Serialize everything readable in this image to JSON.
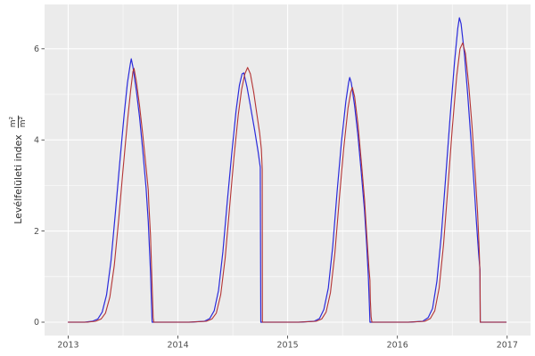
{
  "figure": {
    "background": "#FFFFFF"
  },
  "chart_data": {
    "type": "line",
    "title": "",
    "xlabel": "",
    "ylabel_text": "Levélfelületi index",
    "ylabel_unit_numerator": "m²",
    "ylabel_unit_denominator": "m²",
    "x_ticks": [
      "2013",
      "2014",
      "2015",
      "2016",
      "2017"
    ],
    "x_tick_values": [
      2013,
      2014,
      2015,
      2016,
      2017
    ],
    "x_minor_ticks": [
      2013.5,
      2014.5,
      2015.5,
      2016.5
    ],
    "y_ticks": [
      "0",
      "2",
      "4",
      "6"
    ],
    "y_tick_values": [
      0,
      2,
      4,
      6
    ],
    "y_minor_ticks": [
      1,
      3,
      5
    ],
    "xlim": [
      2012.785,
      2017.213
    ],
    "ylim": [
      -0.293,
      6.973
    ],
    "grid": "major+minor",
    "legend": "none",
    "panel_color": "#EBEBEB",
    "grid_major_color": "#FFFFFF",
    "grid_minor_color": "#FFFFFF",
    "tick_label_color": "#4D4D4D",
    "tick_mark_color": "#333333",
    "series": [
      {
        "name": "blue-series",
        "color": "#2B2BDB",
        "width": 1.2,
        "points": [
          [
            2013.0,
            0
          ],
          [
            2013.15,
            0
          ],
          [
            2013.22,
            0.02
          ],
          [
            2013.27,
            0.07
          ],
          [
            2013.31,
            0.22
          ],
          [
            2013.35,
            0.6
          ],
          [
            2013.39,
            1.35
          ],
          [
            2013.43,
            2.4
          ],
          [
            2013.47,
            3.5
          ],
          [
            2013.51,
            4.55
          ],
          [
            2013.54,
            5.25
          ],
          [
            2013.565,
            5.65
          ],
          [
            2013.575,
            5.78
          ],
          [
            2013.59,
            5.6
          ],
          [
            2013.62,
            5.1
          ],
          [
            2013.65,
            4.5
          ],
          [
            2013.68,
            3.75
          ],
          [
            2013.71,
            2.95
          ],
          [
            2013.73,
            2.2
          ],
          [
            2013.75,
            1.1
          ],
          [
            2013.76,
            0.35
          ],
          [
            2013.765,
            0
          ],
          [
            2013.9,
            0
          ],
          [
            2014.1,
            0
          ],
          [
            2014.24,
            0.02
          ],
          [
            2014.29,
            0.08
          ],
          [
            2014.33,
            0.25
          ],
          [
            2014.37,
            0.7
          ],
          [
            2014.41,
            1.55
          ],
          [
            2014.45,
            2.65
          ],
          [
            2014.49,
            3.7
          ],
          [
            2014.53,
            4.65
          ],
          [
            2014.56,
            5.2
          ],
          [
            2014.585,
            5.45
          ],
          [
            2014.6,
            5.47
          ],
          [
            2014.63,
            5.15
          ],
          [
            2014.66,
            4.75
          ],
          [
            2014.7,
            4.2
          ],
          [
            2014.73,
            3.75
          ],
          [
            2014.75,
            3.4
          ],
          [
            2014.755,
            0
          ],
          [
            2014.9,
            0
          ],
          [
            2015.1,
            0
          ],
          [
            2015.24,
            0.02
          ],
          [
            2015.29,
            0.08
          ],
          [
            2015.33,
            0.28
          ],
          [
            2015.37,
            0.75
          ],
          [
            2015.41,
            1.65
          ],
          [
            2015.45,
            2.85
          ],
          [
            2015.49,
            3.95
          ],
          [
            2015.53,
            4.85
          ],
          [
            2015.555,
            5.25
          ],
          [
            2015.565,
            5.37
          ],
          [
            2015.58,
            5.25
          ],
          [
            2015.61,
            4.75
          ],
          [
            2015.64,
            4.1
          ],
          [
            2015.67,
            3.3
          ],
          [
            2015.7,
            2.45
          ],
          [
            2015.72,
            1.7
          ],
          [
            2015.735,
            1.0
          ],
          [
            2015.745,
            0.35
          ],
          [
            2015.75,
            0
          ],
          [
            2015.9,
            0
          ],
          [
            2016.1,
            0
          ],
          [
            2016.23,
            0.02
          ],
          [
            2016.28,
            0.1
          ],
          [
            2016.32,
            0.3
          ],
          [
            2016.36,
            0.9
          ],
          [
            2016.4,
            1.9
          ],
          [
            2016.44,
            3.2
          ],
          [
            2016.48,
            4.5
          ],
          [
            2016.52,
            5.7
          ],
          [
            2016.55,
            6.45
          ],
          [
            2016.565,
            6.68
          ],
          [
            2016.58,
            6.55
          ],
          [
            2016.61,
            5.9
          ],
          [
            2016.64,
            5.0
          ],
          [
            2016.67,
            4.0
          ],
          [
            2016.7,
            2.95
          ],
          [
            2016.72,
            2.2
          ],
          [
            2016.74,
            1.5
          ],
          [
            2016.752,
            1.15
          ],
          [
            2016.755,
            0
          ],
          [
            2016.85,
            0
          ],
          [
            2016.99,
            0
          ]
        ]
      },
      {
        "name": "red-series",
        "color": "#B43434",
        "width": 1.1,
        "points": [
          [
            2013.0,
            0
          ],
          [
            2013.17,
            0
          ],
          [
            2013.25,
            0.02
          ],
          [
            2013.3,
            0.07
          ],
          [
            2013.34,
            0.2
          ],
          [
            2013.38,
            0.55
          ],
          [
            2013.42,
            1.25
          ],
          [
            2013.46,
            2.25
          ],
          [
            2013.5,
            3.35
          ],
          [
            2013.54,
            4.4
          ],
          [
            2013.57,
            5.1
          ],
          [
            2013.59,
            5.5
          ],
          [
            2013.6,
            5.57
          ],
          [
            2013.62,
            5.3
          ],
          [
            2013.65,
            4.75
          ],
          [
            2013.68,
            4.1
          ],
          [
            2013.71,
            3.4
          ],
          [
            2013.73,
            2.9
          ],
          [
            2013.735,
            2.6
          ],
          [
            2013.75,
            1.9
          ],
          [
            2013.765,
            0.8
          ],
          [
            2013.775,
            0.1
          ],
          [
            2013.78,
            0
          ],
          [
            2013.9,
            0
          ],
          [
            2014.1,
            0
          ],
          [
            2014.26,
            0.02
          ],
          [
            2014.31,
            0.07
          ],
          [
            2014.35,
            0.2
          ],
          [
            2014.39,
            0.6
          ],
          [
            2014.43,
            1.4
          ],
          [
            2014.47,
            2.5
          ],
          [
            2014.51,
            3.6
          ],
          [
            2014.55,
            4.55
          ],
          [
            2014.58,
            5.1
          ],
          [
            2014.61,
            5.45
          ],
          [
            2014.635,
            5.59
          ],
          [
            2014.66,
            5.45
          ],
          [
            2014.69,
            5.05
          ],
          [
            2014.72,
            4.55
          ],
          [
            2014.745,
            4.15
          ],
          [
            2014.76,
            3.8
          ],
          [
            2014.768,
            3.35
          ],
          [
            2014.77,
            0
          ],
          [
            2014.9,
            0
          ],
          [
            2015.1,
            0
          ],
          [
            2015.26,
            0.02
          ],
          [
            2015.31,
            0.07
          ],
          [
            2015.35,
            0.22
          ],
          [
            2015.39,
            0.65
          ],
          [
            2015.43,
            1.5
          ],
          [
            2015.47,
            2.7
          ],
          [
            2015.51,
            3.8
          ],
          [
            2015.55,
            4.7
          ],
          [
            2015.575,
            5.05
          ],
          [
            2015.59,
            5.15
          ],
          [
            2015.61,
            4.95
          ],
          [
            2015.64,
            4.35
          ],
          [
            2015.67,
            3.55
          ],
          [
            2015.7,
            2.7
          ],
          [
            2015.72,
            1.95
          ],
          [
            2015.74,
            1.2
          ],
          [
            2015.75,
            0.92
          ],
          [
            2015.753,
            0.5
          ],
          [
            2015.76,
            0.12
          ],
          [
            2015.768,
            0
          ],
          [
            2015.9,
            0
          ],
          [
            2016.1,
            0
          ],
          [
            2016.25,
            0.02
          ],
          [
            2016.3,
            0.08
          ],
          [
            2016.34,
            0.25
          ],
          [
            2016.38,
            0.75
          ],
          [
            2016.42,
            1.7
          ],
          [
            2016.46,
            2.95
          ],
          [
            2016.5,
            4.25
          ],
          [
            2016.54,
            5.4
          ],
          [
            2016.57,
            6.0
          ],
          [
            2016.595,
            6.13
          ],
          [
            2016.62,
            5.9
          ],
          [
            2016.65,
            5.2
          ],
          [
            2016.68,
            4.3
          ],
          [
            2016.71,
            3.2
          ],
          [
            2016.73,
            2.4
          ],
          [
            2016.745,
            1.6
          ],
          [
            2016.752,
            1.05
          ],
          [
            2016.755,
            0
          ],
          [
            2016.85,
            0
          ],
          [
            2016.99,
            0
          ]
        ]
      }
    ]
  }
}
